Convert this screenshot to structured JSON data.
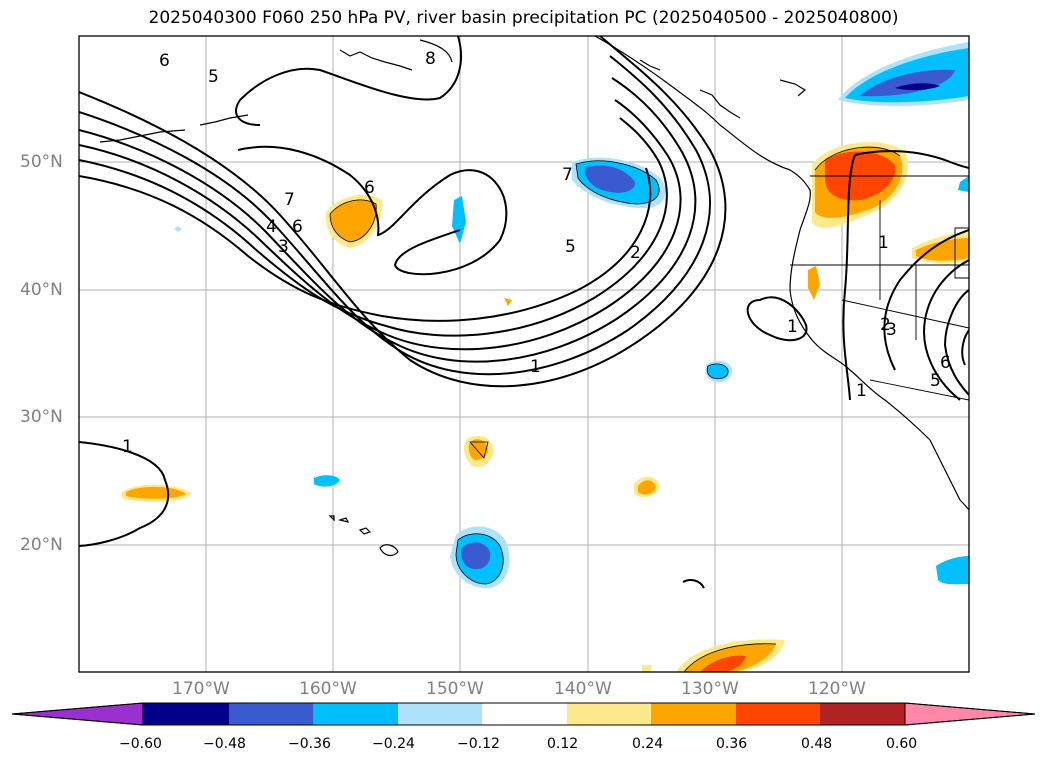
{
  "title": "2025040300 F060 250 hPa PV, river basin precipitation PC (2025040500 - 2025040800)",
  "map": {
    "latitude_labels": [
      "50°N",
      "40°N",
      "30°N",
      "20°N"
    ],
    "longitude_labels": [
      "170°W",
      "160°W",
      "150°W",
      "140°W",
      "130°W",
      "120°W"
    ],
    "contour_labels": [
      "6",
      "5",
      "8",
      "7",
      "4",
      "3",
      "6",
      "6",
      "7",
      "5",
      "2",
      "1",
      "1",
      "2",
      "3",
      "6",
      "5",
      "1",
      "1",
      "1"
    ]
  },
  "colorbar": {
    "ticks": [
      "−0.60",
      "−0.48",
      "−0.36",
      "−0.24",
      "−0.12",
      "0.12",
      "0.24",
      "0.36",
      "0.48",
      "0.60"
    ],
    "colors": [
      "#9b30d0",
      "#00008b",
      "#3a5bd0",
      "#00bfff",
      "#aee2fa",
      "#ffffff",
      "#fde98c",
      "#ffa500",
      "#ff4500",
      "#b22222",
      "#ff88aa"
    ]
  }
}
